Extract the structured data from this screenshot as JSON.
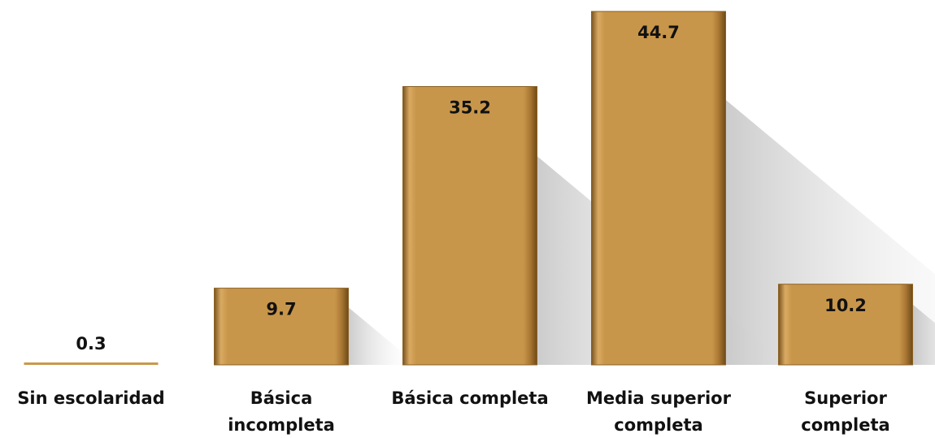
{
  "chart_data": {
    "type": "bar",
    "categories": [
      "Sin escolaridad",
      "Básica\nincompleta",
      "Básica completa",
      "Media superior\ncompleta",
      "Superior\ncompleta"
    ],
    "values": [
      0.3,
      9.7,
      35.2,
      44.7,
      10.2
    ],
    "color": "#c8964a"
  }
}
